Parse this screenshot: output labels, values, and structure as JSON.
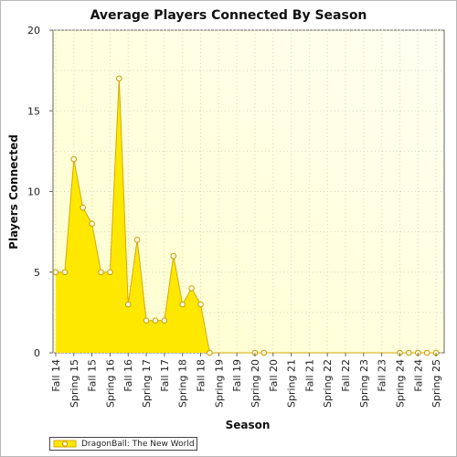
{
  "chart_data": {
    "type": "area",
    "title": "Average Players Connected By Season",
    "xlabel": "Season",
    "ylabel": "Players Connected",
    "ylim": [
      0,
      20
    ],
    "yticks": [
      0,
      5,
      10,
      15,
      20
    ],
    "grid": true,
    "legend_position": "bottom-left",
    "categories": [
      "Fall 14",
      "Spring 15",
      "Fall 15",
      "Spring 16",
      "Fall 16",
      "Spring 17",
      "Fall 17",
      "Spring 18",
      "Fall 18",
      "Spring 19",
      "Fall 19",
      "Spring 20",
      "Fall 20",
      "Spring 21",
      "Fall 21",
      "Spring 22",
      "Fall 22",
      "Spring 23",
      "Fall 23",
      "Spring 24",
      "Fall 24",
      "Spring 25"
    ],
    "series": [
      {
        "name": "DragonBall: The New World",
        "color": "#ffe800",
        "line_color": "#d4aa00",
        "x": [
          0,
          0.5,
          1,
          1.5,
          2,
          2.5,
          3,
          3.5,
          4,
          4.5,
          5,
          5.5,
          6,
          6.5,
          7,
          7.5,
          8,
          8.5,
          9,
          9.5,
          10,
          10.5,
          11,
          11.5,
          12,
          12.5,
          13,
          13.5,
          14,
          14.5,
          15,
          15.5,
          16,
          16.5,
          17,
          17.5,
          18,
          18.5,
          19,
          19.5,
          20,
          20.5,
          21
        ],
        "values": [
          5,
          5,
          12,
          9,
          8,
          5,
          5,
          17,
          3,
          7,
          2,
          2,
          2,
          6,
          3,
          4,
          3,
          0,
          0,
          0,
          0,
          0,
          0,
          0,
          0,
          0,
          0,
          0,
          0,
          0,
          0,
          0,
          0,
          0,
          0,
          0,
          0,
          0,
          0,
          0,
          0,
          0,
          0
        ],
        "marked_x": [
          0,
          0.5,
          1,
          1.5,
          2,
          2.5,
          3,
          3.5,
          4,
          4.5,
          5,
          5.5,
          6,
          6.5,
          7,
          7.5,
          8,
          8.5,
          11,
          11.5,
          19,
          19.5,
          20,
          20.5,
          21
        ]
      }
    ]
  },
  "legend": {
    "label": "DragonBall: The New World"
  }
}
